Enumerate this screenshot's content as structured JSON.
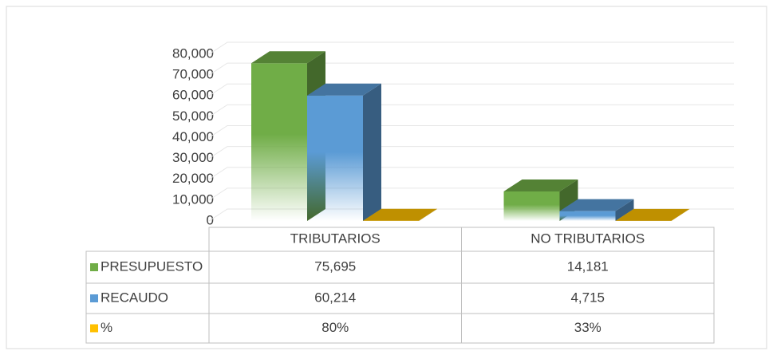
{
  "chart_data": {
    "type": "bar3d",
    "categories": [
      "TRIBUTARIOS",
      "NO TRIBUTARIOS"
    ],
    "series": [
      {
        "name": "PRESUPUESTO",
        "color": "#70ad47",
        "values": [
          75695,
          14181
        ],
        "value_labels": [
          "75,695",
          "14,181"
        ]
      },
      {
        "name": "RECAUDO",
        "color": "#5b9bd5",
        "values": [
          60214,
          4715
        ],
        "value_labels": [
          "60,214",
          "4,715"
        ]
      },
      {
        "name": "%",
        "color": "#ffc000",
        "values": [
          80,
          33
        ],
        "value_labels": [
          "80%",
          "33%"
        ]
      }
    ],
    "ylim": [
      0,
      80000
    ],
    "yticks": [
      0,
      {
        "value": 10000,
        "label": "10,000"
      },
      {
        "value": 20000,
        "label": "20,000"
      },
      {
        "value": 30000,
        "label": "30,000"
      },
      {
        "value": 40000,
        "label": "40,000"
      },
      {
        "value": 50000,
        "label": "50,000"
      },
      {
        "value": 60000,
        "label": "60,000"
      },
      {
        "value": 70000,
        "label": "70,000"
      },
      {
        "value": 80000,
        "label": "80,000"
      }
    ],
    "grid": true
  }
}
